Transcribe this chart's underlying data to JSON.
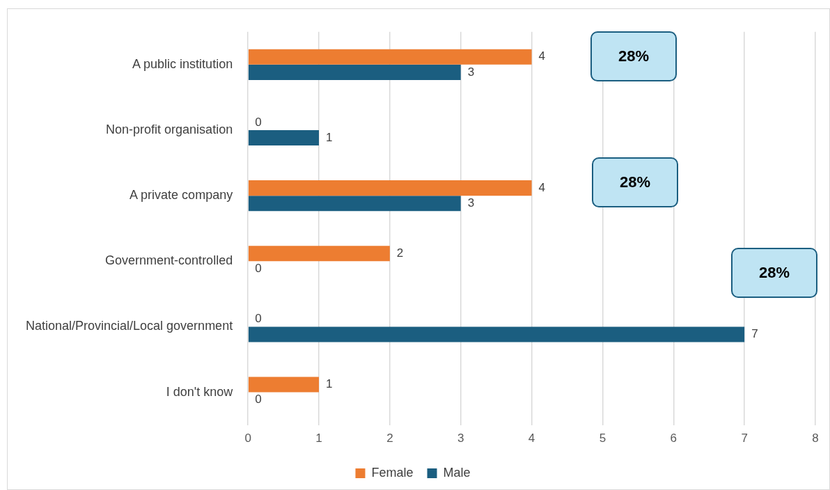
{
  "chart_data": {
    "type": "bar",
    "orientation": "horizontal",
    "categories": [
      "A public institution",
      "Non-profit organisation",
      "A private company",
      "Government-controlled",
      "National/Provincial/Local government",
      "I don't know"
    ],
    "series": [
      {
        "name": "Female",
        "color": "#ed7d31",
        "values": [
          4,
          0,
          4,
          2,
          0,
          1
        ]
      },
      {
        "name": "Male",
        "color": "#1b5e80",
        "values": [
          3,
          1,
          3,
          0,
          7,
          0
        ]
      }
    ],
    "xlim": [
      0,
      8
    ],
    "xticks": [
      0,
      1,
      2,
      3,
      4,
      5,
      6,
      7,
      8
    ],
    "grid": "x",
    "legend": "bottom",
    "data_labels": true,
    "annotations": [
      "28%",
      "28%",
      "28%"
    ]
  }
}
